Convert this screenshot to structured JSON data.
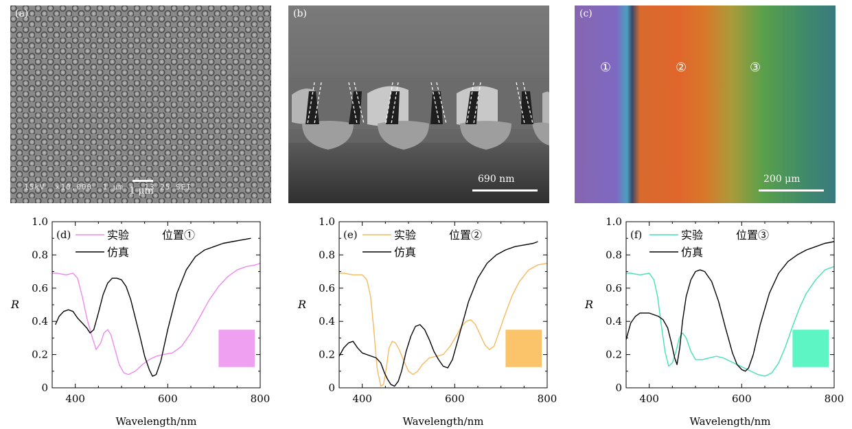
{
  "photos": {
    "a": {
      "label": "(a)",
      "info": "15kV  ×10,000  1 μm    13 25 SEI",
      "scale": "1 μm"
    },
    "b": {
      "label": "(b)",
      "scale": "690 nm"
    },
    "c": {
      "label": "(c)",
      "scale": "200 μm",
      "regions": [
        "①",
        "②",
        "③"
      ]
    }
  },
  "chart_data": [
    {
      "type": "line",
      "panel_label": "(d)",
      "xlabel": "Wavelength/nm",
      "ylabel": "R",
      "xlim": [
        350,
        800
      ],
      "ylim": [
        0,
        1.0
      ],
      "xticks": [
        400,
        600,
        800
      ],
      "yticks": [
        0,
        0.2,
        0.4,
        0.6,
        0.8,
        1.0
      ],
      "position_label": "位置①",
      "swatch_color": "#f0a0f0",
      "series": [
        {
          "name": "实验",
          "color": "#ee88ee",
          "x": [
            350,
            360,
            380,
            395,
            405,
            415,
            425,
            435,
            445,
            455,
            462,
            470,
            477,
            485,
            495,
            505,
            515,
            530,
            545,
            560,
            575,
            590,
            610,
            630,
            650,
            670,
            690,
            710,
            730,
            750,
            770,
            790,
            800
          ],
          "y": [
            0.69,
            0.69,
            0.68,
            0.69,
            0.66,
            0.55,
            0.42,
            0.32,
            0.23,
            0.27,
            0.33,
            0.35,
            0.32,
            0.24,
            0.14,
            0.09,
            0.08,
            0.1,
            0.14,
            0.17,
            0.19,
            0.2,
            0.21,
            0.25,
            0.33,
            0.43,
            0.53,
            0.61,
            0.67,
            0.71,
            0.73,
            0.74,
            0.75
          ]
        },
        {
          "name": "仿真",
          "color": "#000000",
          "x": [
            357,
            365,
            375,
            385,
            395,
            405,
            415,
            425,
            432,
            440,
            450,
            460,
            470,
            480,
            490,
            500,
            510,
            520,
            530,
            540,
            550,
            560,
            567,
            575,
            585,
            600,
            620,
            640,
            660,
            680,
            700,
            720,
            740,
            760,
            780
          ],
          "y": [
            0.38,
            0.43,
            0.46,
            0.47,
            0.46,
            0.42,
            0.39,
            0.36,
            0.33,
            0.35,
            0.45,
            0.56,
            0.63,
            0.66,
            0.66,
            0.65,
            0.61,
            0.53,
            0.42,
            0.31,
            0.19,
            0.11,
            0.07,
            0.08,
            0.16,
            0.35,
            0.57,
            0.71,
            0.79,
            0.83,
            0.85,
            0.87,
            0.88,
            0.89,
            0.9
          ]
        }
      ]
    },
    {
      "type": "line",
      "panel_label": "(e)",
      "xlabel": "Wavelength/nm",
      "ylabel": "R",
      "xlim": [
        350,
        800
      ],
      "ylim": [
        0,
        1.0
      ],
      "xticks": [
        400,
        600,
        800
      ],
      "yticks": [
        0,
        0.2,
        0.4,
        0.6,
        0.8,
        1.0
      ],
      "position_label": "位置②",
      "swatch_color": "#fbc46a",
      "series": [
        {
          "name": "实验",
          "color": "#f6b960",
          "x": [
            350,
            360,
            380,
            400,
            410,
            418,
            425,
            432,
            440,
            446,
            452,
            458,
            465,
            472,
            480,
            490,
            500,
            510,
            520,
            530,
            545,
            560,
            575,
            590,
            605,
            615,
            625,
            635,
            645,
            655,
            665,
            675,
            685,
            695,
            710,
            725,
            740,
            760,
            780,
            800
          ],
          "y": [
            0.69,
            0.69,
            0.68,
            0.68,
            0.65,
            0.55,
            0.35,
            0.12,
            0.01,
            0.02,
            0.12,
            0.24,
            0.28,
            0.27,
            0.23,
            0.16,
            0.1,
            0.08,
            0.1,
            0.14,
            0.18,
            0.19,
            0.2,
            0.25,
            0.32,
            0.37,
            0.4,
            0.41,
            0.38,
            0.32,
            0.26,
            0.23,
            0.25,
            0.33,
            0.45,
            0.56,
            0.64,
            0.71,
            0.74,
            0.75
          ]
        },
        {
          "name": "仿真",
          "color": "#000000",
          "x": [
            350,
            360,
            370,
            380,
            390,
            400,
            410,
            420,
            430,
            440,
            448,
            455,
            462,
            470,
            478,
            485,
            495,
            505,
            515,
            525,
            535,
            545,
            555,
            565,
            575,
            585,
            595,
            610,
            630,
            650,
            670,
            690,
            710,
            730,
            750,
            770,
            780
          ],
          "y": [
            0.19,
            0.24,
            0.27,
            0.28,
            0.24,
            0.21,
            0.2,
            0.19,
            0.18,
            0.15,
            0.09,
            0.05,
            0.02,
            0.01,
            0.04,
            0.1,
            0.22,
            0.31,
            0.37,
            0.38,
            0.35,
            0.29,
            0.22,
            0.17,
            0.13,
            0.12,
            0.17,
            0.32,
            0.52,
            0.66,
            0.75,
            0.8,
            0.83,
            0.85,
            0.86,
            0.87,
            0.88
          ]
        }
      ]
    },
    {
      "type": "line",
      "panel_label": "(f)",
      "xlabel": "Wavelength/nm",
      "ylabel": "R",
      "xlim": [
        350,
        800
      ],
      "ylim": [
        0,
        1.0
      ],
      "xticks": [
        400,
        600,
        800
      ],
      "yticks": [
        0,
        0.2,
        0.4,
        0.6,
        0.8,
        1.0
      ],
      "position_label": "位置③",
      "swatch_color": "#5df5c4",
      "series": [
        {
          "name": "实验",
          "color": "#44e0b8",
          "x": [
            350,
            360,
            380,
            400,
            410,
            418,
            426,
            434,
            442,
            450,
            458,
            465,
            472,
            480,
            490,
            500,
            515,
            530,
            545,
            560,
            575,
            590,
            605,
            620,
            635,
            650,
            665,
            680,
            695,
            710,
            725,
            740,
            760,
            780,
            800
          ],
          "y": [
            0.69,
            0.69,
            0.68,
            0.69,
            0.65,
            0.55,
            0.38,
            0.22,
            0.13,
            0.15,
            0.22,
            0.3,
            0.33,
            0.3,
            0.22,
            0.17,
            0.17,
            0.18,
            0.19,
            0.18,
            0.16,
            0.14,
            0.12,
            0.1,
            0.08,
            0.07,
            0.09,
            0.15,
            0.25,
            0.37,
            0.48,
            0.57,
            0.65,
            0.71,
            0.73
          ]
        },
        {
          "name": "仿真",
          "color": "#000000",
          "x": [
            350,
            360,
            370,
            380,
            390,
            400,
            410,
            420,
            430,
            440,
            448,
            455,
            460,
            466,
            472,
            480,
            490,
            500,
            510,
            520,
            535,
            550,
            565,
            580,
            590,
            600,
            608,
            615,
            625,
            640,
            660,
            680,
            700,
            720,
            740,
            760,
            780,
            800
          ],
          "y": [
            0.29,
            0.39,
            0.43,
            0.45,
            0.45,
            0.45,
            0.44,
            0.43,
            0.41,
            0.36,
            0.27,
            0.18,
            0.14,
            0.24,
            0.4,
            0.55,
            0.65,
            0.7,
            0.71,
            0.7,
            0.64,
            0.52,
            0.36,
            0.21,
            0.14,
            0.11,
            0.1,
            0.12,
            0.2,
            0.38,
            0.57,
            0.69,
            0.76,
            0.8,
            0.83,
            0.85,
            0.87,
            0.88
          ]
        }
      ]
    }
  ]
}
